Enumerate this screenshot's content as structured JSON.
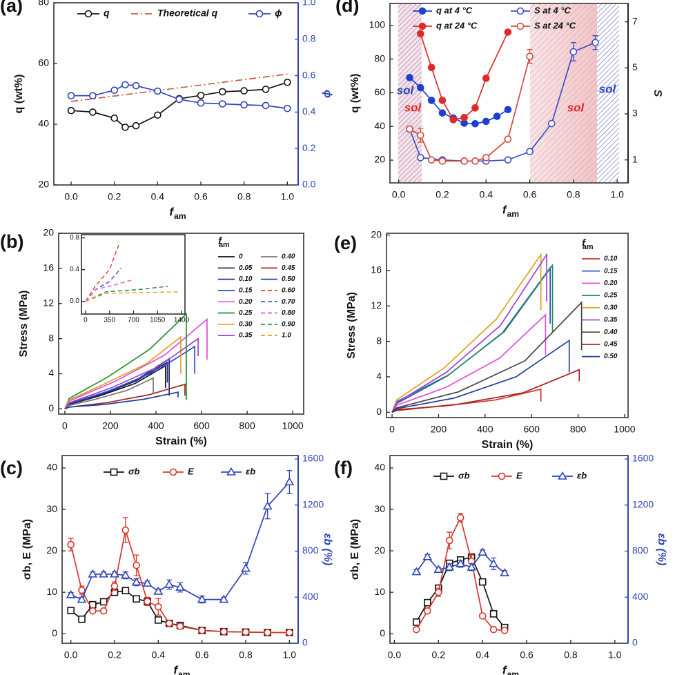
{
  "chart_data": [
    {
      "panel": "(a)",
      "type": "line",
      "x_label": "f",
      "x_label_sub": "am",
      "y_label": "q (wt%)",
      "y2_label": "ϕ",
      "y2_color": "#2e44b8",
      "xlim": [
        -0.08,
        1.05
      ],
      "xticks": [
        {
          "value": 0,
          "label": "0.0"
        },
        0.2,
        0.4,
        0.6,
        0.8,
        {
          "value": 1,
          "label": "1.0"
        }
      ],
      "ylim": [
        20,
        80
      ],
      "yticks": [
        20,
        40,
        60,
        80
      ],
      "y2lim": [
        0,
        1
      ],
      "y2ticks": [
        {
          "value": 0,
          "label": "0.0"
        },
        0.2,
        0.4,
        0.6,
        0.8,
        {
          "value": 1,
          "label": "1.0"
        }
      ],
      "x": [
        0,
        0.1,
        0.2,
        0.25,
        0.3,
        0.4,
        0.5,
        0.6,
        0.7,
        0.8,
        0.9,
        1.0
      ],
      "series": [
        {
          "name": "q",
          "color": "#111111",
          "marker": "circle",
          "values": [
            44.5,
            44,
            42,
            39,
            39.5,
            43,
            48.4,
            49.5,
            50.7,
            51,
            51.5,
            53.8
          ]
        },
        {
          "name": "Theoretical q",
          "color": "#d0573e",
          "dash": "dashdot",
          "x": [
            0,
            1
          ],
          "values": [
            47.5,
            56.5
          ]
        },
        {
          "name": "ϕ",
          "color": "#2e44b8",
          "marker": "circle",
          "axis": "y2",
          "values": [
            0.49,
            0.49,
            0.52,
            0.55,
            0.545,
            0.515,
            0.47,
            0.45,
            0.445,
            0.44,
            0.436,
            0.42
          ]
        }
      ]
    },
    {
      "panel": "(b)",
      "type": "line",
      "x_label": "Strain (%)",
      "y_label": "Stress (MPa)",
      "legend_title": "f",
      "legend_title_sub": "am",
      "xlim": [
        -27,
        1048
      ],
      "xticks": [
        0,
        200,
        400,
        600,
        800,
        1000
      ],
      "ylim": [
        -0.6,
        20
      ],
      "yticks": [
        0,
        4,
        8,
        12,
        16,
        20
      ],
      "series": [
        {
          "name": "0",
          "color": "#111111",
          "x": [
            0,
            20,
            155,
            309,
            442,
            442
          ],
          "values": [
            0,
            0.5,
            1.5,
            2.9,
            4.9,
            2.4
          ]
        },
        {
          "name": "0.05",
          "color": "#1e2a5a",
          "x": [
            0,
            20,
            158,
            315,
            450,
            450
          ],
          "values": [
            0,
            0.5,
            1.6,
            3.2,
            5.3,
            3.0
          ]
        },
        {
          "name": "0.10",
          "color": "#1a2d8c",
          "x": [
            0,
            20,
            160,
            321,
            458,
            458
          ],
          "values": [
            0,
            0.6,
            1.7,
            3.4,
            5.7,
            1.5
          ]
        },
        {
          "name": "0.15",
          "color": "#2f48d0",
          "x": [
            0,
            20,
            200,
            399,
            570,
            570
          ],
          "values": [
            0,
            0.6,
            2.1,
            4.3,
            7.1,
            4.0
          ]
        },
        {
          "name": "0.20",
          "color": "#e24fd6",
          "x": [
            0,
            20,
            218,
            437,
            624,
            624
          ],
          "values": [
            0,
            0.9,
            3.1,
            6.1,
            10.2,
            5.6
          ]
        },
        {
          "name": "0.25",
          "color": "#1f8f2f",
          "x": [
            0,
            20,
            187,
            373,
            533,
            533
          ],
          "values": [
            0,
            1.2,
            3.6,
            6.8,
            10.8,
            1.0
          ]
        },
        {
          "name": "0.30",
          "color": "#e0a020",
          "x": [
            0,
            20,
            178,
            356,
            509,
            509
          ],
          "values": [
            0,
            1.0,
            2.9,
            5.1,
            8.2,
            4.0
          ]
        },
        {
          "name": "0.35",
          "color": "#9b3fd6",
          "x": [
            0,
            20,
            205,
            410,
            585,
            585
          ],
          "values": [
            0,
            0.7,
            2.4,
            4.8,
            8.0,
            6.0
          ]
        },
        {
          "name": "0.40",
          "color": "#777777",
          "x": [
            0,
            20,
            136,
            272,
            388,
            388
          ],
          "values": [
            0,
            0.4,
            1.1,
            2.1,
            3.5,
            1.8
          ]
        },
        {
          "name": "0.45",
          "color": "#a8231e",
          "x": [
            0,
            20,
            184,
            369,
            527,
            527
          ],
          "values": [
            0,
            0.2,
            0.7,
            1.6,
            2.8,
            1.5
          ]
        },
        {
          "name": "0.50",
          "color": "#1f3f9a",
          "x": [
            0,
            20,
            174,
            348,
            497,
            497
          ],
          "values": [
            0,
            0.2,
            0.5,
            1.1,
            1.9,
            1.3
          ]
        }
      ]
    },
    {
      "type": "line",
      "xlim": [
        -60,
        1450
      ],
      "xticks": [
        0,
        350,
        700,
        1050,
        1400
      ],
      "ylim": [
        -0.16,
        0.84
      ],
      "yticks": [
        {
          "value": 0,
          "label": "0.0"
        },
        0.4,
        0.8
      ],
      "series": [
        {
          "name": "0.60",
          "color": "#e03a2e",
          "dash": "dash",
          "x": [
            0,
            150,
            350,
            500
          ],
          "values": [
            0,
            0.2,
            0.4,
            0.75
          ]
        },
        {
          "name": "0.70",
          "color": "#2f48d0",
          "dash": "dash",
          "x": [
            0,
            150,
            350,
            520
          ],
          "values": [
            0,
            0.15,
            0.25,
            0.42
          ]
        },
        {
          "name": "0.80",
          "color": "#e24fd6",
          "dash": "dash",
          "x": [
            0,
            150,
            400,
            680
          ],
          "values": [
            0,
            0.15,
            0.2,
            0.27
          ]
        },
        {
          "name": "0.90",
          "color": "#1f7a3a",
          "dash": "dash",
          "x": [
            0,
            300,
            800,
            1200
          ],
          "values": [
            0,
            0.12,
            0.15,
            0.19
          ]
        },
        {
          "name": "1.0",
          "color": "#e0a020",
          "dash": "dash",
          "x": [
            0,
            300,
            800,
            1350
          ],
          "values": [
            0,
            0.1,
            0.11,
            0.12
          ]
        }
      ]
    },
    {
      "panel": "(c)",
      "type": "line",
      "x_label": "f",
      "x_label_sub": "am",
      "y_label": "σb, E (MPa)",
      "y2_label": "εb (%)",
      "y2_color": "#2e44b8",
      "xlim": [
        -0.04,
        1.04
      ],
      "xticks": [
        {
          "value": 0,
          "label": "0.0"
        },
        0.2,
        0.4,
        0.6,
        0.8,
        {
          "value": 1,
          "label": "1.0"
        }
      ],
      "ylim": [
        -2.3,
        43
      ],
      "yticks": [
        0,
        10,
        20,
        30,
        40
      ],
      "y2lim": [
        0,
        1630
      ],
      "y2ticks": [
        0,
        400,
        800,
        1200,
        1600
      ],
      "x": [
        0,
        0.05,
        0.1,
        0.15,
        0.2,
        0.25,
        0.3,
        0.35,
        0.4,
        0.45,
        0.5,
        0.6,
        0.7,
        0.8,
        0.9,
        1.0
      ],
      "series": [
        {
          "name": "σb",
          "color": "#111111",
          "marker": "square",
          "values": [
            5.6,
            3.5,
            7.0,
            7.7,
            10,
            10.4,
            8.4,
            7.8,
            3.3,
            2.5,
            2.0,
            0.8,
            0.5,
            0.4,
            0.3,
            0.3
          ]
        },
        {
          "name": "E",
          "color": "#d6362c",
          "marker": "circle",
          "values": [
            21.5,
            10.5,
            5.5,
            5.5,
            11.5,
            25,
            16.5,
            7.8,
            6.5,
            2.5,
            1.8,
            0.8,
            0.5,
            0.4,
            0.3,
            0.3
          ],
          "errors": [
            1.5,
            1,
            0.5,
            0.5,
            1,
            3,
            2.5,
            1,
            2,
            0.5,
            0.3,
            0.2,
            0.2,
            0.2,
            0.2,
            0.2
          ]
        },
        {
          "name": "εb",
          "color": "#2e44b8",
          "marker": "triangle",
          "axis": "y2",
          "values": [
            420,
            380,
            600,
            600,
            600,
            590,
            530,
            520,
            450,
            510,
            485,
            380,
            380,
            650,
            1190,
            1400
          ],
          "errors": [
            20,
            20,
            20,
            20,
            20,
            30,
            30,
            20,
            20,
            40,
            40,
            30,
            20,
            50,
            110,
            100
          ]
        }
      ]
    },
    {
      "panel": "(d)",
      "type": "line",
      "x_label": "f",
      "x_label_sub": "am",
      "y_label": "q (wt%)",
      "y2_label": "S",
      "xlim": [
        -0.04,
        1.05
      ],
      "xticks": [
        {
          "value": 0,
          "label": "0.0"
        },
        0.2,
        0.4,
        0.6,
        0.8,
        {
          "value": 1,
          "label": "1.0"
        }
      ],
      "ylim": [
        6.5,
        113
      ],
      "yticks": [
        20,
        40,
        60,
        80,
        100
      ],
      "y2lim": [
        0,
        7.8
      ],
      "y2ticks": [
        1,
        3,
        5,
        7
      ],
      "annotations": [
        "sol",
        "sol",
        "sol",
        "sol"
      ],
      "series": [
        {
          "name": "q at 4 °C",
          "color": "#1f3fd0",
          "marker": "circle",
          "filled": true,
          "x": [
            0.05,
            0.1,
            0.15,
            0.2,
            0.25,
            0.3,
            0.35,
            0.4,
            0.45,
            0.5
          ],
          "values": [
            69,
            63,
            55.5,
            48,
            45,
            42,
            41.6,
            43,
            46,
            50
          ]
        },
        {
          "name": "q at 24 °C",
          "color": "#e02a2a",
          "marker": "circle",
          "filled": true,
          "x": [
            0.1,
            0.15,
            0.2,
            0.25,
            0.3,
            0.35,
            0.4,
            0.5
          ],
          "values": [
            95,
            75,
            55.5,
            44,
            45.3,
            51,
            68.6,
            96
          ]
        },
        {
          "name": "S at 4 °C",
          "color": "#3a4fc8",
          "marker": "circle",
          "axis": "y2",
          "x": [
            0.05,
            0.1,
            0.2,
            0.3,
            0.4,
            0.5,
            0.6,
            0.7,
            0.8,
            0.9
          ],
          "values": [
            2.34,
            1.1,
            1.0,
            0.95,
            0.95,
            1.0,
            1.36,
            2.58,
            5.7,
            6.1
          ],
          "errors": [
            0.1,
            0.05,
            0.05,
            0.05,
            0.05,
            0.05,
            0.05,
            0.05,
            0.4,
            0.3
          ]
        },
        {
          "name": "S at 24 °C",
          "color": "#d04a3a",
          "marker": "circle",
          "axis": "y2",
          "x": [
            0.05,
            0.1,
            0.15,
            0.2,
            0.3,
            0.35,
            0.4,
            0.5,
            0.6
          ],
          "values": [
            2.34,
            2.07,
            1.0,
            0.95,
            0.95,
            0.95,
            1.1,
            1.9,
            5.5
          ],
          "errors": [
            0.1,
            0.3,
            0.05,
            0.05,
            0.05,
            0.05,
            0.05,
            0.05,
            0.3
          ]
        }
      ]
    },
    {
      "panel": "(e)",
      "type": "line",
      "x_label": "Strain (%)",
      "y_label": "Stress (MPa)",
      "legend_title": "f",
      "legend_title_sub": "am",
      "xlim": [
        -24,
        1015
      ],
      "xticks": [
        0,
        200,
        400,
        600,
        800,
        1000
      ],
      "ylim": [
        -0.6,
        20.2
      ],
      "yticks": [
        0,
        4,
        8,
        12,
        16,
        20
      ],
      "series": [
        {
          "name": "0.10",
          "color": "#d4302a",
          "x": [
            0,
            20,
            224,
            448,
            640,
            640
          ],
          "values": [
            0,
            0.3,
            0.7,
            1.4,
            2.6,
            1.2
          ]
        },
        {
          "name": "0.15",
          "color": "#2f48d0",
          "x": [
            0,
            20,
            238,
            476,
            680,
            680
          ],
          "values": [
            0,
            1.0,
            4.1,
            9.0,
            16.3,
            10.0
          ]
        },
        {
          "name": "0.20",
          "color": "#e24fd6",
          "x": [
            0,
            20,
            231,
            462,
            660,
            660
          ],
          "values": [
            0,
            0.8,
            2.8,
            6.1,
            11.0,
            6.5
          ]
        },
        {
          "name": "0.25",
          "color": "#1f8f5f",
          "x": [
            0,
            20,
            242,
            483,
            690,
            690
          ],
          "values": [
            0,
            1.2,
            4.2,
            9.1,
            16.6,
            9.0
          ]
        },
        {
          "name": "0.30",
          "color": "#e0a020",
          "x": [
            0,
            20,
            224,
            448,
            640,
            640
          ],
          "values": [
            0,
            1.4,
            5.0,
            10.5,
            17.8,
            11.5
          ]
        },
        {
          "name": "0.35",
          "color": "#a23fd6",
          "x": [
            0,
            20,
            233,
            466,
            665,
            665
          ],
          "values": [
            0,
            1.1,
            4.5,
            9.8,
            17.8,
            12.5
          ]
        },
        {
          "name": "0.40",
          "color": "#444444",
          "x": [
            0,
            20,
            285,
            571,
            815,
            815
          ],
          "values": [
            0,
            0.5,
            2.3,
            5.8,
            12.4,
            7.0
          ]
        },
        {
          "name": "0.45",
          "color": "#a8231e",
          "x": [
            0,
            20,
            282,
            564,
            805,
            805
          ],
          "values": [
            0,
            0.2,
            0.9,
            2.2,
            4.8,
            3.5
          ]
        },
        {
          "name": "0.50",
          "color": "#1f3f9a",
          "x": [
            0,
            20,
            267,
            533,
            762,
            762
          ],
          "values": [
            0,
            0.4,
            1.6,
            4.0,
            8.1,
            4.5
          ]
        }
      ]
    },
    {
      "panel": "(f)",
      "type": "line",
      "x_label": "f",
      "x_label_sub": "am",
      "y_label": "σb, E (MPa)",
      "y2_label": "εb (%)",
      "y2_color": "#2e44b8",
      "xlim": [
        -0.02,
        1.06
      ],
      "xticks": [
        {
          "value": 0,
          "label": "0.0"
        },
        0.2,
        0.4,
        0.6,
        0.8,
        {
          "value": 1,
          "label": "1.0"
        }
      ],
      "ylim": [
        -2.3,
        43
      ],
      "yticks": [
        0,
        10,
        20,
        30,
        40
      ],
      "y2lim": [
        0,
        1630
      ],
      "y2ticks": [
        0,
        400,
        800,
        1200,
        1600
      ],
      "x": [
        0.1,
        0.15,
        0.2,
        0.25,
        0.3,
        0.35,
        0.4,
        0.45,
        0.5
      ],
      "series": [
        {
          "name": "σb",
          "color": "#111111",
          "marker": "square",
          "values": [
            2.8,
            7.5,
            11,
            17,
            17.8,
            18.5,
            12.5,
            4.8,
            1.5
          ]
        },
        {
          "name": "E",
          "color": "#d6362c",
          "marker": "circle",
          "values": [
            1,
            5.5,
            10,
            22.5,
            28,
            17.5,
            4.3,
            1,
            0.8
          ],
          "errors": [
            0.3,
            0.5,
            1,
            2,
            1,
            1.5,
            0.5,
            0.3,
            0.3
          ]
        },
        {
          "name": "εb",
          "color": "#2e44b8",
          "marker": "triangle",
          "axis": "y2",
          "values": [
            620,
            750,
            640,
            660,
            690,
            660,
            790,
            690,
            610
          ],
          "errors": [
            20,
            20,
            20,
            30,
            30,
            30,
            20,
            50,
            20
          ]
        }
      ]
    }
  ]
}
